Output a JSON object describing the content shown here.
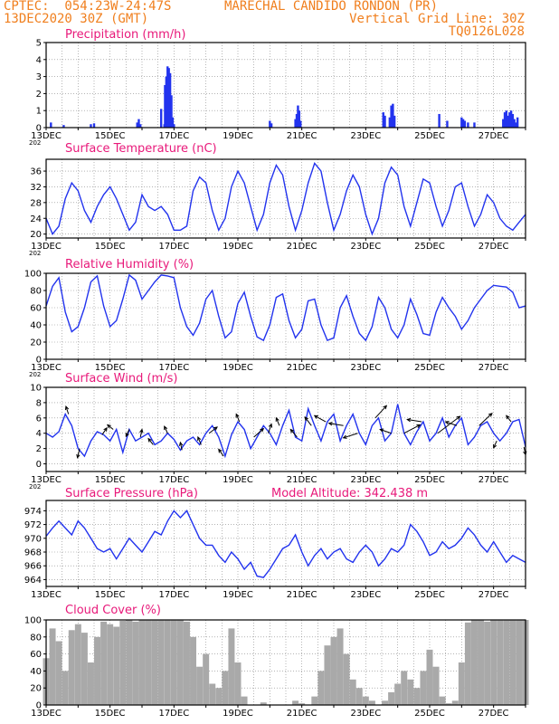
{
  "header": {
    "station_line": "CPTEC:  054:23W-24:47S",
    "station_name": "MARECHAL CANDIDO RONDON (PR)",
    "date_line": "13DEC2020 30Z (GMT)",
    "grid_line": "Vertical Grid Line: 30Z",
    "code": "TQ0126L028"
  },
  "x_ticks": [
    "13DEC",
    "15DEC",
    "17DEC",
    "19DEC",
    "21DEC",
    "23DEC",
    "25DEC",
    "27DEC"
  ],
  "year_stub": "202",
  "colors": {
    "series": "#2233ee",
    "title": "#e8197a",
    "header": "#f07f1e",
    "cloud": "#a9a9a9",
    "grid": "#888888"
  },
  "chart_data": [
    {
      "type": "bar",
      "title": "Precipitation (mm/h)",
      "ylim": [
        0,
        5
      ],
      "yticks": [
        "0",
        "1",
        "2",
        "3",
        "4",
        "5"
      ],
      "x_days": [
        0,
        15
      ],
      "bars": [
        {
          "x": 0.15,
          "v": 0.3
        },
        {
          "x": 0.55,
          "v": 0.15
        },
        {
          "x": 1.4,
          "v": 0.2
        },
        {
          "x": 1.5,
          "v": 0.25
        },
        {
          "x": 2.85,
          "v": 0.3
        },
        {
          "x": 2.9,
          "v": 0.5
        },
        {
          "x": 2.95,
          "v": 0.2
        },
        {
          "x": 3.6,
          "v": 1.1
        },
        {
          "x": 3.7,
          "v": 0.2
        },
        {
          "x": 3.72,
          "v": 2.5
        },
        {
          "x": 3.76,
          "v": 3.0
        },
        {
          "x": 3.8,
          "v": 3.6
        },
        {
          "x": 3.84,
          "v": 3.5
        },
        {
          "x": 3.88,
          "v": 3.2
        },
        {
          "x": 3.92,
          "v": 1.9
        },
        {
          "x": 3.96,
          "v": 0.6
        },
        {
          "x": 4.0,
          "v": 0.2
        },
        {
          "x": 7.0,
          "v": 0.4
        },
        {
          "x": 7.05,
          "v": 0.25
        },
        {
          "x": 7.8,
          "v": 0.5
        },
        {
          "x": 7.84,
          "v": 0.8
        },
        {
          "x": 7.88,
          "v": 1.3
        },
        {
          "x": 7.92,
          "v": 1.0
        },
        {
          "x": 7.96,
          "v": 0.4
        },
        {
          "x": 10.55,
          "v": 0.9
        },
        {
          "x": 10.6,
          "v": 0.7
        },
        {
          "x": 10.75,
          "v": 0.6
        },
        {
          "x": 10.8,
          "v": 1.3
        },
        {
          "x": 10.85,
          "v": 1.4
        },
        {
          "x": 10.9,
          "v": 0.7
        },
        {
          "x": 12.3,
          "v": 0.8
        },
        {
          "x": 12.55,
          "v": 0.4
        },
        {
          "x": 13.0,
          "v": 0.6
        },
        {
          "x": 13.05,
          "v": 0.5
        },
        {
          "x": 13.1,
          "v": 0.4
        },
        {
          "x": 13.2,
          "v": 0.3
        },
        {
          "x": 13.4,
          "v": 0.3
        },
        {
          "x": 14.3,
          "v": 0.5
        },
        {
          "x": 14.35,
          "v": 0.9
        },
        {
          "x": 14.4,
          "v": 1.0
        },
        {
          "x": 14.45,
          "v": 0.7
        },
        {
          "x": 14.5,
          "v": 0.9
        },
        {
          "x": 14.55,
          "v": 1.0
        },
        {
          "x": 14.6,
          "v": 0.8
        },
        {
          "x": 14.65,
          "v": 0.5
        },
        {
          "x": 14.7,
          "v": 0.3
        },
        {
          "x": 14.75,
          "v": 0.6
        }
      ]
    },
    {
      "type": "line",
      "title": "Surface Temperature (nC)",
      "ylim": [
        19,
        39
      ],
      "yticks": [
        20,
        24,
        28,
        32,
        36
      ],
      "x": [
        0,
        0.2,
        0.4,
        0.6,
        0.8,
        1.0,
        1.2,
        1.4,
        1.6,
        1.8,
        2.0,
        2.2,
        2.4,
        2.6,
        2.8,
        3.0,
        3.2,
        3.4,
        3.6,
        3.8,
        4.0,
        4.2,
        4.4,
        4.6,
        4.8,
        5.0,
        5.2,
        5.4,
        5.6,
        5.8,
        6.0,
        6.2,
        6.4,
        6.6,
        6.8,
        7.0,
        7.2,
        7.4,
        7.6,
        7.8,
        8.0,
        8.2,
        8.4,
        8.6,
        8.8,
        9.0,
        9.2,
        9.4,
        9.6,
        9.8,
        10.0,
        10.2,
        10.4,
        10.6,
        10.8,
        11.0,
        11.2,
        11.4,
        11.6,
        11.8,
        12.0,
        12.2,
        12.4,
        12.6,
        12.8,
        13.0,
        13.2,
        13.4,
        13.6,
        13.8,
        14.0,
        14.2,
        14.4,
        14.6,
        14.8,
        15.0
      ],
      "y": [
        24,
        20,
        22,
        29,
        33,
        31,
        26,
        23,
        27,
        30,
        32,
        29,
        25,
        21,
        23,
        30,
        27,
        26,
        27,
        25,
        21,
        21,
        22,
        31,
        34.5,
        33,
        26,
        21,
        24,
        32,
        36,
        33,
        27,
        21,
        25,
        33,
        37.5,
        35,
        27,
        21,
        26,
        33,
        38,
        36,
        28,
        21,
        25,
        31,
        35,
        32,
        25,
        20,
        24,
        33,
        37,
        35,
        27,
        22,
        28,
        34,
        33,
        27,
        22,
        26,
        32,
        33,
        27,
        22,
        25,
        30,
        28,
        24,
        22,
        21,
        23,
        25
      ]
    },
    {
      "type": "line",
      "title": "Relative Humidity (%)",
      "ylim": [
        0,
        100
      ],
      "yticks": [
        0,
        20,
        40,
        60,
        80,
        100
      ],
      "x": [
        0,
        0.2,
        0.4,
        0.6,
        0.8,
        1.0,
        1.2,
        1.4,
        1.6,
        1.8,
        2.0,
        2.2,
        2.4,
        2.6,
        2.8,
        3.0,
        3.2,
        3.4,
        3.6,
        3.8,
        4.0,
        4.2,
        4.4,
        4.6,
        4.8,
        5.0,
        5.2,
        5.4,
        5.6,
        5.8,
        6.0,
        6.2,
        6.4,
        6.6,
        6.8,
        7.0,
        7.2,
        7.4,
        7.6,
        7.8,
        8.0,
        8.2,
        8.4,
        8.6,
        8.8,
        9.0,
        9.2,
        9.4,
        9.6,
        9.8,
        10.0,
        10.2,
        10.4,
        10.6,
        10.8,
        11.0,
        11.2,
        11.4,
        11.6,
        11.8,
        12.0,
        12.2,
        12.4,
        12.6,
        12.8,
        13.0,
        13.2,
        13.4,
        13.6,
        13.8,
        14.0,
        14.2,
        14.4,
        14.6,
        14.8,
        15.0
      ],
      "y": [
        62,
        85,
        95,
        55,
        32,
        38,
        60,
        90,
        97,
        62,
        38,
        45,
        70,
        98,
        92,
        70,
        80,
        90,
        98,
        97,
        95,
        60,
        38,
        28,
        42,
        70,
        80,
        50,
        25,
        32,
        65,
        78,
        50,
        26,
        22,
        40,
        72,
        76,
        45,
        25,
        35,
        68,
        70,
        40,
        22,
        25,
        60,
        74,
        50,
        30,
        22,
        38,
        72,
        60,
        35,
        25,
        40,
        70,
        52,
        30,
        28,
        55,
        72,
        60,
        50,
        35,
        45,
        60,
        70,
        80,
        86,
        85,
        84,
        78,
        60,
        62
      ]
    },
    {
      "type": "line",
      "title": "Surface Wind (m/s)",
      "ylim": [
        -1,
        10
      ],
      "yticks": [
        0,
        2,
        4,
        6,
        8,
        10
      ],
      "x": [
        0,
        0.2,
        0.4,
        0.6,
        0.8,
        1.0,
        1.2,
        1.4,
        1.6,
        1.8,
        2.0,
        2.2,
        2.4,
        2.6,
        2.8,
        3.0,
        3.2,
        3.4,
        3.6,
        3.8,
        4.0,
        4.2,
        4.4,
        4.6,
        4.8,
        5.0,
        5.2,
        5.4,
        5.6,
        5.8,
        6.0,
        6.2,
        6.4,
        6.6,
        6.8,
        7.0,
        7.2,
        7.4,
        7.6,
        7.8,
        8.0,
        8.2,
        8.4,
        8.6,
        8.8,
        9.0,
        9.2,
        9.4,
        9.6,
        9.8,
        10.0,
        10.2,
        10.4,
        10.6,
        10.8,
        11.0,
        11.2,
        11.4,
        11.6,
        11.8,
        12.0,
        12.2,
        12.4,
        12.6,
        12.8,
        13.0,
        13.2,
        13.4,
        13.6,
        13.8,
        14.0,
        14.2,
        14.4,
        14.6,
        14.8,
        15.0
      ],
      "y": [
        4,
        3.5,
        4.2,
        6.5,
        5,
        2,
        1,
        3,
        4.2,
        3.8,
        3,
        4.5,
        1.5,
        4.5,
        3,
        3.5,
        4,
        2.5,
        3,
        4,
        3.2,
        1.8,
        3,
        3.5,
        2.5,
        4,
        5,
        3.5,
        1,
        3.8,
        5.5,
        4.5,
        2,
        3.5,
        5,
        4,
        2.5,
        5,
        7,
        3.5,
        3,
        7.2,
        5,
        3,
        5.5,
        6.5,
        3,
        5,
        6.5,
        4,
        2.5,
        5,
        6,
        3,
        4,
        7.8,
        4,
        2.5,
        4.2,
        5.5,
        3,
        4,
        6,
        3.5,
        5,
        6,
        2.5,
        3.5,
        5,
        5.5,
        4,
        3,
        4,
        5.5,
        5.8,
        2.2
      ],
      "arrows": [
        {
          "x": 0.7,
          "dx": -0.08,
          "dy": 1.0
        },
        {
          "x": 1.05,
          "dx": -0.07,
          "dy": -1.2
        },
        {
          "x": 1.75,
          "dx": 0.15,
          "dy": 0.9
        },
        {
          "x": 2.1,
          "dx": -0.18,
          "dy": 0.6
        },
        {
          "x": 2.6,
          "dx": -0.1,
          "dy": -0.9
        },
        {
          "x": 2.95,
          "dx": 0.05,
          "dy": 1.0
        },
        {
          "x": 3.35,
          "dx": -0.15,
          "dy": 0.8
        },
        {
          "x": 3.8,
          "dx": -0.1,
          "dy": 0.9
        },
        {
          "x": 4.25,
          "dx": -0.05,
          "dy": 1.0
        },
        {
          "x": 4.85,
          "dx": -0.1,
          "dy": 1.0
        },
        {
          "x": 5.1,
          "dx": 0.25,
          "dy": 0.8
        },
        {
          "x": 5.55,
          "dx": -0.15,
          "dy": 0.9
        },
        {
          "x": 6.05,
          "dx": -0.1,
          "dy": 1.0
        },
        {
          "x": 6.5,
          "dx": 0.3,
          "dy": 1.1
        },
        {
          "x": 6.95,
          "dx": 0.1,
          "dy": 1.2
        },
        {
          "x": 7.3,
          "dx": -0.1,
          "dy": 1.0
        },
        {
          "x": 7.85,
          "dx": -0.2,
          "dy": 1.0
        },
        {
          "x": 8.3,
          "dx": -0.2,
          "dy": 1.1
        },
        {
          "x": 8.75,
          "dx": -0.35,
          "dy": 0.8
        },
        {
          "x": 9.3,
          "dx": -0.45,
          "dy": 0.3
        },
        {
          "x": 9.75,
          "dx": -0.45,
          "dy": -0.6
        },
        {
          "x": 10.3,
          "dx": 0.35,
          "dy": 1.6
        },
        {
          "x": 10.8,
          "dx": -0.35,
          "dy": 0.5
        },
        {
          "x": 11.2,
          "dx": 0.5,
          "dy": 1.1
        },
        {
          "x": 11.75,
          "dx": -0.45,
          "dy": 0.3
        },
        {
          "x": 12.25,
          "dx": 0.7,
          "dy": 2.2
        },
        {
          "x": 12.85,
          "dx": -0.35,
          "dy": 0.5
        },
        {
          "x": 13.55,
          "dx": 0.4,
          "dy": 1.6
        },
        {
          "x": 14.1,
          "dx": -0.1,
          "dy": -0.9
        },
        {
          "x": 14.55,
          "dx": -0.15,
          "dy": 0.8
        },
        {
          "x": 14.95,
          "dx": 0.05,
          "dy": -1.0
        }
      ]
    },
    {
      "type": "line",
      "title": "Surface Pressure (hPa)",
      "annotation": "Model Altitude: 342.438  m",
      "ylim": [
        963,
        975.5
      ],
      "yticks": [
        964,
        966,
        968,
        970,
        972,
        974
      ],
      "x": [
        0,
        0.2,
        0.4,
        0.6,
        0.8,
        1.0,
        1.2,
        1.4,
        1.6,
        1.8,
        2.0,
        2.2,
        2.4,
        2.6,
        2.8,
        3.0,
        3.2,
        3.4,
        3.6,
        3.8,
        4.0,
        4.2,
        4.4,
        4.6,
        4.8,
        5.0,
        5.2,
        5.4,
        5.6,
        5.8,
        6.0,
        6.2,
        6.4,
        6.6,
        6.8,
        7.0,
        7.2,
        7.4,
        7.6,
        7.8,
        8.0,
        8.2,
        8.4,
        8.6,
        8.8,
        9.0,
        9.2,
        9.4,
        9.6,
        9.8,
        10.0,
        10.2,
        10.4,
        10.6,
        10.8,
        11.0,
        11.2,
        11.4,
        11.6,
        11.8,
        12.0,
        12.2,
        12.4,
        12.6,
        12.8,
        13.0,
        13.2,
        13.4,
        13.6,
        13.8,
        14.0,
        14.2,
        14.4,
        14.6,
        14.8,
        15.0
      ],
      "y": [
        970.3,
        971.5,
        972.5,
        971.5,
        970.5,
        972.5,
        971.5,
        970,
        968.5,
        968,
        968.5,
        967,
        968.5,
        970,
        969,
        968,
        969.5,
        971,
        970.5,
        972.5,
        974,
        973,
        974,
        972,
        970,
        969,
        969,
        967.5,
        966.5,
        968,
        967,
        965.5,
        966.5,
        964.5,
        964.3,
        965.5,
        967,
        968.5,
        969,
        970.5,
        968,
        966,
        967.5,
        968.5,
        967,
        968,
        968.5,
        967,
        966.5,
        968,
        969,
        968,
        966,
        967,
        968.5,
        968,
        969,
        972,
        971,
        969.5,
        967.5,
        968,
        969.5,
        968.5,
        969,
        970,
        971.5,
        970.5,
        969,
        968,
        969.5,
        968,
        966.5,
        967.5,
        967,
        966.5
      ]
    },
    {
      "type": "bar",
      "title": "Cloud Cover (%)",
      "ylim": [
        0,
        100
      ],
      "yticks": [
        0,
        20,
        40,
        60,
        80,
        100
      ],
      "x": [
        0,
        0.2,
        0.4,
        0.6,
        0.8,
        1.0,
        1.2,
        1.4,
        1.6,
        1.8,
        2.0,
        2.2,
        2.4,
        2.6,
        2.8,
        3.0,
        3.2,
        3.4,
        3.6,
        3.8,
        4.0,
        4.2,
        4.4,
        4.6,
        4.8,
        5.0,
        5.2,
        5.4,
        5.6,
        5.8,
        6.0,
        6.2,
        6.4,
        6.6,
        6.8,
        7.0,
        7.2,
        7.4,
        7.6,
        7.8,
        8.0,
        8.2,
        8.4,
        8.6,
        8.8,
        9.0,
        9.2,
        9.4,
        9.6,
        9.8,
        10.0,
        10.2,
        10.4,
        10.6,
        10.8,
        11.0,
        11.2,
        11.4,
        11.6,
        11.8,
        12.0,
        12.2,
        12.4,
        12.6,
        12.8,
        13.0,
        13.2,
        13.4,
        13.6,
        13.8,
        14.0,
        14.2,
        14.4,
        14.6,
        14.8,
        15.0
      ],
      "values": [
        55,
        90,
        75,
        40,
        88,
        95,
        85,
        50,
        80,
        98,
        95,
        92,
        99,
        100,
        98,
        100,
        100,
        100,
        100,
        100,
        100,
        100,
        98,
        80,
        45,
        60,
        25,
        20,
        40,
        90,
        50,
        10,
        0,
        0,
        3,
        0,
        0,
        0,
        0,
        5,
        2,
        0,
        10,
        40,
        70,
        80,
        90,
        60,
        30,
        20,
        10,
        5,
        0,
        5,
        15,
        25,
        40,
        30,
        20,
        40,
        65,
        45,
        10,
        2,
        5,
        50,
        97,
        100,
        100,
        98,
        100,
        100,
        100,
        100,
        100,
        100
      ]
    }
  ]
}
